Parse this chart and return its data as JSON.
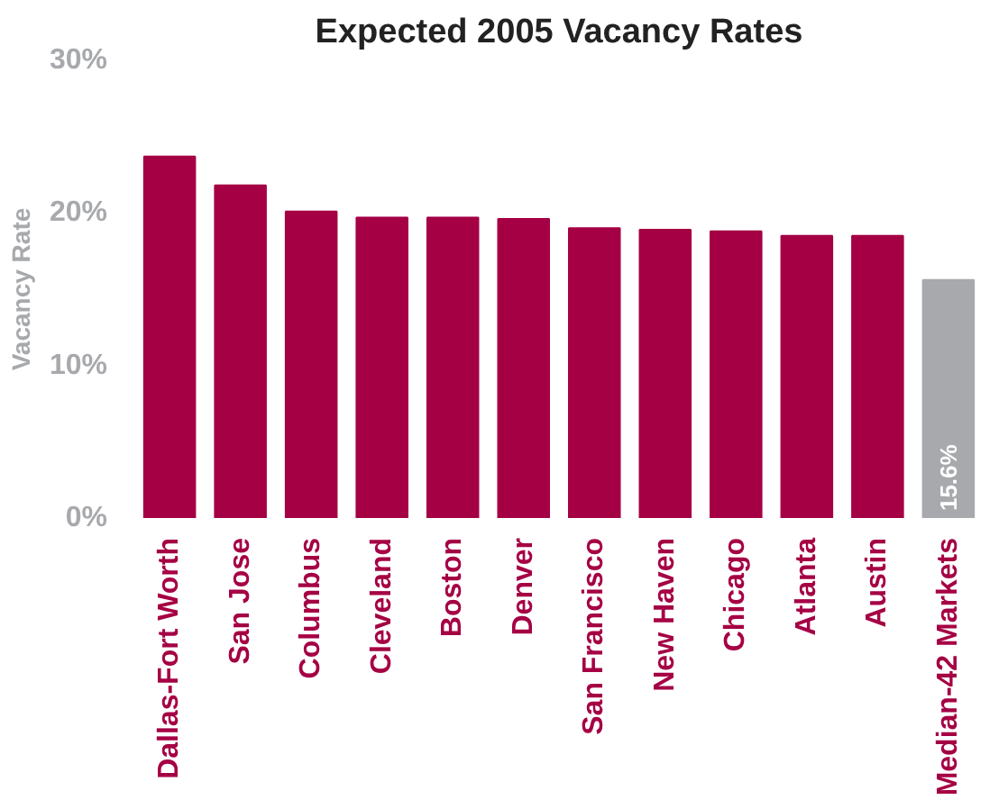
{
  "chart_data": {
    "type": "bar",
    "title": "Expected 2005 Vacancy Rates",
    "ylabel": "Vacancy Rate",
    "categories": [
      "Dallas-Fort Worth",
      "San Jose",
      "Columbus",
      "Cleveland",
      "Boston",
      "Denver",
      "San Francisco",
      "New Haven",
      "Chicago",
      "Atlanta",
      "Austin",
      "Median-42 Markets"
    ],
    "values": [
      23.7,
      21.8,
      20.1,
      19.7,
      19.7,
      19.6,
      19.0,
      18.9,
      18.8,
      18.5,
      18.5,
      15.6
    ],
    "colors": [
      "#a50044",
      "#a50044",
      "#a50044",
      "#a50044",
      "#a50044",
      "#a50044",
      "#a50044",
      "#a50044",
      "#a50044",
      "#a50044",
      "#a50044",
      "#a7a9ac"
    ],
    "value_labels": [
      null,
      null,
      null,
      null,
      null,
      null,
      null,
      null,
      null,
      null,
      null,
      "15.6%"
    ],
    "ylim": [
      0,
      30
    ],
    "yticks": [
      {
        "value": 0,
        "label": "0%"
      },
      {
        "value": 10,
        "label": "10%"
      },
      {
        "value": 20,
        "label": "20%"
      },
      {
        "value": 30,
        "label": "30%"
      }
    ],
    "grid": false
  }
}
